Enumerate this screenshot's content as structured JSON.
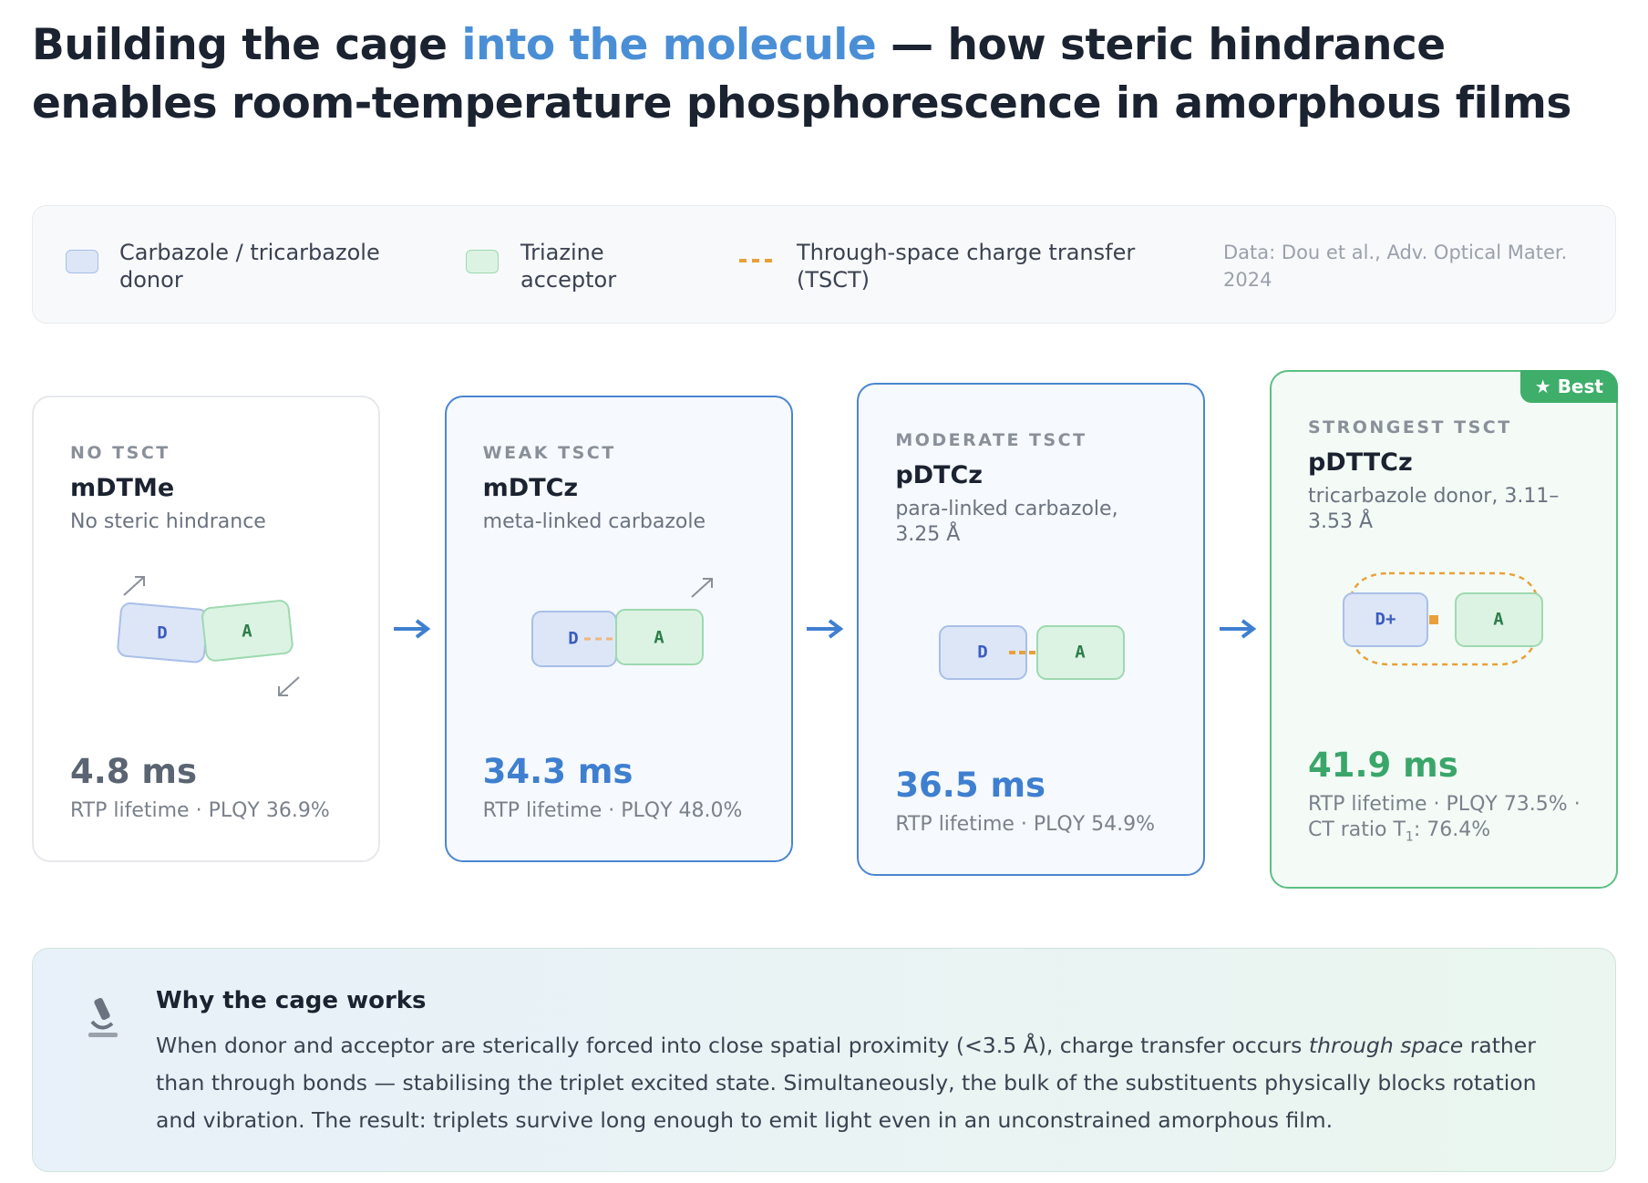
{
  "header": {
    "title_parts": [
      "Building the cage ",
      "into the molecule",
      " — how steric hindrance enables room-temperature phosphorescence in amorphous films"
    ]
  },
  "legend": {
    "items": [
      {
        "label": "Carbazole / tricarbazole donor"
      },
      {
        "label": "Triazine acceptor"
      },
      {
        "label": "Through-space charge transfer (TSCT)"
      }
    ],
    "source": "Data: Dou et al., Adv. Optical Mater. 2024"
  },
  "cards": [
    {
      "tag": "NO TSCT",
      "name": "mDTMe",
      "desc": "No steric hindrance",
      "donor": "D",
      "acceptor": "A",
      "value": "4.8 ms",
      "caption": "RTP lifetime · PLQY 36.9%"
    },
    {
      "tag": "WEAK TSCT",
      "name": "mDTCz",
      "desc": "meta-linked carbazole",
      "donor": "D",
      "acceptor": "A",
      "value": "34.3 ms",
      "caption": "RTP lifetime · PLQY 48.0%"
    },
    {
      "tag": "MODERATE TSCT",
      "name": "pDTCz",
      "desc": "para-linked carbazole, 3.25 Å",
      "donor": "D",
      "acceptor": "A",
      "value": "36.5 ms",
      "caption": "RTP lifetime · PLQY 54.9%"
    },
    {
      "tag": "STRONGEST TSCT",
      "name": "pDTTCz",
      "desc": "tricarbazole donor, 3.11–3.53 Å",
      "donor": "D+",
      "acceptor": "A",
      "value": "41.9 ms",
      "caption": "RTP lifetime · PLQY 73.5% · CT ratio T",
      "caption_sub": "1",
      "caption_end": ": 76.4%",
      "badge": "★ Best"
    }
  ],
  "note": {
    "title": "Why the cage works",
    "text_parts": [
      "When donor and acceptor are sterically forced into close spatial proximity (<3.5 Å), charge transfer occurs ",
      "through space",
      " rather than through bonds — stabilising the triplet excited state. Simultaneously, the bulk of the substituents physically blocks rotation and vibration. The result: triplets survive long enough to emit light even in an unconstrained amorphous film."
    ]
  }
}
